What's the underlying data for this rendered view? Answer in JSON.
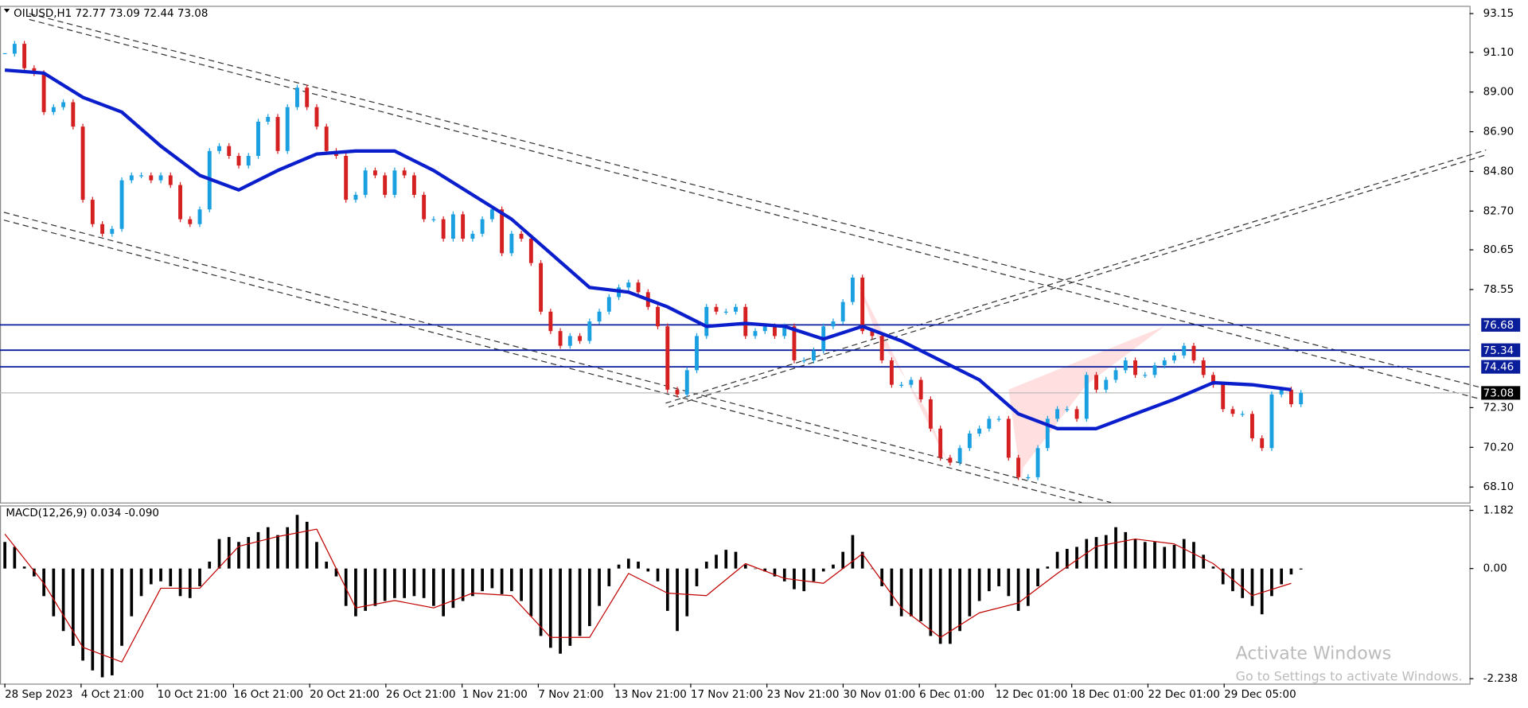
{
  "chart_data": {
    "type": "candlestick",
    "title": "OILUSD,H1  72.77 73.09 72.44 73.08",
    "indicator_title": "MACD(12,26,9) 0.034 -0.090",
    "watermark": [
      "Activate Windows",
      "Go to Settings to activate Windows."
    ],
    "xlabels": [
      "28 Sep 2023",
      "4 Oct 21:00",
      "10 Oct 21:00",
      "16 Oct 21:00",
      "20 Oct 21:00",
      "26 Oct 21:00",
      "1 Nov 21:00",
      "7 Nov 21:00",
      "13 Nov 21:00",
      "17 Nov 21:00",
      "23 Nov 21:00",
      "30 Nov 01:00",
      "6 Dec 01:00",
      "12 Dec 01:00",
      "18 Dec 01:00",
      "22 Dec 01:00",
      "29 Dec 05:00"
    ],
    "up_color": "#1a9fe0",
    "down_color": "#d42020",
    "close": [
      91.03,
      91.55,
      90.26,
      90.0,
      87.94,
      88.2,
      88.46,
      87.17,
      83.3,
      82.01,
      81.5,
      81.76,
      84.33,
      84.59,
      84.59,
      84.33,
      84.59,
      84.08,
      82.27,
      82.01,
      82.79,
      85.88,
      86.14,
      85.62,
      85.11,
      85.62,
      87.43,
      87.68,
      85.88,
      88.2,
      89.23,
      88.2,
      87.17,
      85.88,
      85.62,
      83.3,
      83.56,
      84.85,
      84.59,
      83.56,
      84.85,
      84.59,
      83.56,
      82.27,
      82.27,
      81.24,
      82.53,
      81.24,
      81.5,
      82.27,
      82.79,
      80.47,
      81.5,
      81.24,
      79.95,
      77.38,
      76.35,
      75.57,
      76.09,
      75.83,
      76.86,
      77.38,
      78.15,
      78.66,
      78.92,
      78.41,
      77.63,
      76.6,
      73.25,
      73.0,
      74.28,
      76.09,
      77.63,
      77.38,
      77.38,
      77.63,
      76.09,
      76.35,
      76.6,
      76.09,
      76.6,
      74.8,
      74.8,
      75.32,
      76.6,
      76.86,
      77.89,
      79.18,
      76.35,
      76.09,
      74.8,
      73.51,
      73.51,
      73.77,
      72.74,
      71.19,
      69.65,
      69.39,
      70.16,
      70.93,
      71.19,
      71.71,
      71.71,
      69.65,
      68.62,
      68.62,
      70.16,
      71.71,
      72.22,
      72.22,
      71.71,
      74.03,
      73.25,
      73.77,
      74.28,
      74.8,
      74.03,
      74.03,
      74.54,
      74.8,
      75.06,
      75.57,
      74.8,
      74.03,
      73.51,
      72.22,
      71.97,
      71.97,
      70.68,
      70.16,
      73.0,
      73.25,
      72.48,
      73.08
    ],
    "ma": {
      "color": "#0a1ecc",
      "every": 4,
      "values": [
        90.16,
        90.0,
        88.72,
        87.94,
        86.14,
        84.59,
        83.82,
        84.85,
        85.72,
        85.88,
        85.88,
        84.85,
        83.56,
        82.27,
        80.47,
        78.66,
        78.41,
        77.63,
        76.6,
        76.76,
        76.6,
        75.93,
        76.6,
        75.83,
        74.8,
        73.77,
        71.97,
        71.19,
        71.19,
        71.97,
        72.74,
        73.62,
        73.51,
        73.25
      ]
    },
    "levels": [
      76.68,
      75.34,
      74.46
    ],
    "level_color": "#0a1e9c",
    "current_price": 73.08,
    "ylim": [
      67.28,
      93.56
    ],
    "yticks": [
      {
        "value": 93.15,
        "label": "93.15"
      },
      {
        "value": 91.1,
        "label": "91.10"
      },
      {
        "value": 89,
        "label": "89.00"
      },
      {
        "value": 86.9,
        "label": "86.90"
      },
      {
        "value": 84.8,
        "label": "84.80"
      },
      {
        "value": 82.7,
        "label": "82.70"
      },
      {
        "value": 80.65,
        "label": "80.65"
      },
      {
        "value": 78.55,
        "label": "78.55"
      },
      {
        "value": 72.3,
        "label": "72.30"
      },
      {
        "value": 70.2,
        "label": "70.20"
      },
      {
        "value": 68.1,
        "label": "68.10"
      }
    ],
    "macd": {
      "hist_color": "#000000",
      "signal_color": "#c00000",
      "ylim": [
        -2.339,
        1.282
      ],
      "yticks": [
        1.182,
        {
          "value": 0,
          "label": "0.00"
        },
        -2.238
      ],
      "hist": [
        0.54,
        0.44,
        0.04,
        -0.16,
        -0.56,
        -0.97,
        -1.27,
        -1.57,
        -1.87,
        -2.07,
        -2.21,
        -2.17,
        -1.57,
        -0.97,
        -0.56,
        -0.32,
        -0.26,
        -0.36,
        -0.56,
        -0.6,
        -0.36,
        0.14,
        0.6,
        0.64,
        0.54,
        0.64,
        0.74,
        0.84,
        0.68,
        0.84,
        1.09,
        0.95,
        0.54,
        0.14,
        -0.16,
        -0.76,
        -0.97,
        -0.86,
        -0.76,
        -0.66,
        -0.6,
        -0.6,
        -0.56,
        -0.6,
        -0.76,
        -0.97,
        -0.8,
        -0.66,
        -0.56,
        -0.46,
        -0.4,
        -0.52,
        -0.46,
        -0.66,
        -0.97,
        -1.37,
        -1.61,
        -1.73,
        -1.57,
        -1.37,
        -1.17,
        -0.76,
        -0.36,
        0.08,
        0.2,
        0.14,
        -0.06,
        -0.26,
        -0.86,
        -1.27,
        -0.97,
        -0.36,
        0.14,
        0.28,
        0.38,
        0.34,
        0.08,
        0.0,
        -0.06,
        -0.16,
        -0.26,
        -0.42,
        -0.46,
        -0.26,
        -0.06,
        0.08,
        0.34,
        0.68,
        0.34,
        0.0,
        -0.36,
        -0.76,
        -0.97,
        -0.97,
        -1.07,
        -1.37,
        -1.53,
        -1.53,
        -1.27,
        -0.97,
        -0.66,
        -0.46,
        -0.36,
        -0.56,
        -0.86,
        -0.76,
        -0.36,
        0.04,
        0.34,
        0.4,
        0.44,
        0.6,
        0.64,
        0.68,
        0.84,
        0.74,
        0.6,
        0.54,
        0.54,
        0.44,
        0.48,
        0.6,
        0.54,
        0.28,
        0.04,
        -0.32,
        -0.46,
        -0.6,
        -0.76,
        -0.93,
        -0.56,
        -0.32,
        -0.12,
        -0.02
      ],
      "signal_every": 4,
      "signal": [
        0.7,
        -0.3,
        -1.6,
        -1.9,
        -0.4,
        -0.4,
        0.45,
        0.65,
        0.8,
        -0.8,
        -0.65,
        -0.8,
        -0.5,
        -0.55,
        -1.4,
        -1.4,
        -0.1,
        -0.5,
        -0.55,
        0.1,
        -0.2,
        -0.3,
        0.3,
        -0.8,
        -1.4,
        -0.9,
        -0.7,
        -0.1,
        0.45,
        0.6,
        0.5,
        0.1,
        -0.55,
        -0.3
      ]
    }
  }
}
